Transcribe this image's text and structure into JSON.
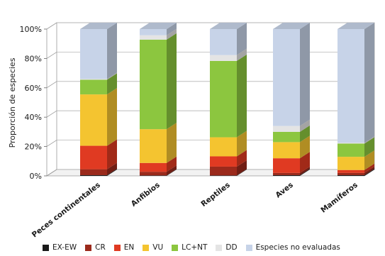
{
  "chart_data": {
    "type": "bar",
    "stacked": true,
    "three_d": true,
    "ylabel": "Proporción de especies",
    "yticks": [
      "0%",
      "20%",
      "40%",
      "60%",
      "80%",
      "100%"
    ],
    "ylim": [
      0,
      100
    ],
    "grid": false,
    "legend_position": "bottom",
    "categories": [
      "Peces continentales",
      "Anfibios",
      "Reptiles",
      "Aves",
      "Mamíferos"
    ],
    "series": [
      {
        "name": "EX-EW",
        "color": "#1a1a1a",
        "values": [
          0.5,
          0.3,
          0.3,
          0.5,
          0.5
        ]
      },
      {
        "name": "CR",
        "color": "#9b2a1c",
        "values": [
          4,
          2.5,
          6,
          1.5,
          1.5
        ]
      },
      {
        "name": "EN",
        "color": "#e03a22",
        "values": [
          16,
          6,
          7,
          10,
          2
        ]
      },
      {
        "name": "VU",
        "color": "#f4c430",
        "values": [
          35,
          23,
          13,
          11,
          9
        ]
      },
      {
        "name": "LC+NT",
        "color": "#8cc63f",
        "values": [
          10,
          61,
          52,
          7,
          9
        ]
      },
      {
        "name": "DD",
        "color": "#e4e4e4",
        "values": [
          0.5,
          3,
          4,
          4,
          0.5
        ]
      },
      {
        "name": "Especies no evaluadas",
        "color": "#c7d3e8",
        "values": [
          34,
          4.2,
          17.7,
          66,
          77.5
        ]
      }
    ]
  }
}
